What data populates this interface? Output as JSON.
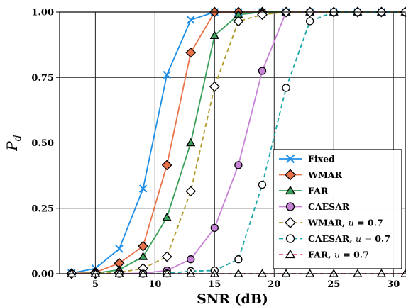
{
  "chart_data": {
    "type": "line",
    "xlabel": "SNR (dB)",
    "ylabel_main": "P",
    "ylabel_sub": "d",
    "xlim": [
      2,
      31
    ],
    "ylim": [
      0,
      1
    ],
    "x_ticks": [
      5,
      10,
      15,
      20,
      25,
      30
    ],
    "y_ticks": [
      0.0,
      0.25,
      0.5,
      0.75,
      1.0
    ],
    "x_tick_labels": [
      "5",
      "10",
      "15",
      "20",
      "25",
      "30"
    ],
    "y_tick_labels": [
      "0.00",
      "0.25",
      "0.50",
      "0.75",
      "1.00"
    ],
    "grid": true,
    "legend_position": "bottom-right",
    "x": [
      3,
      5,
      7,
      9,
      11,
      13,
      15,
      17,
      19,
      21,
      23,
      25,
      27,
      29,
      31
    ],
    "series": [
      {
        "name": "Fixed",
        "color": "#1f8fe6",
        "dash": "solid",
        "marker": "x",
        "values": [
          0.002,
          0.02,
          0.095,
          0.325,
          0.76,
          0.97,
          1.0,
          1.0,
          1.0,
          1.0,
          1.0,
          1.0,
          1.0,
          1.0,
          1.0
        ]
      },
      {
        "name": "WMAR",
        "color": "#e8734a",
        "dash": "solid",
        "marker": "diamond",
        "fill": "#e8734a",
        "values": [
          0.001,
          0.005,
          0.04,
          0.105,
          0.415,
          0.845,
          1.0,
          1.0,
          1.0,
          1.0,
          1.0,
          1.0,
          1.0,
          1.0,
          1.0
        ]
      },
      {
        "name": "FAR",
        "color": "#3aa05a",
        "dash": "solid",
        "marker": "triangle",
        "fill": "#3aa05a",
        "values": [
          0.0,
          0.002,
          0.015,
          0.065,
          0.215,
          0.5,
          0.91,
          0.99,
          1.0,
          1.0,
          1.0,
          1.0,
          1.0,
          1.0,
          1.0
        ]
      },
      {
        "name": "CAESAR",
        "color": "#c781d6",
        "dash": "solid",
        "marker": "circle",
        "fill": "#c781d6",
        "values": [
          0.0,
          0.0,
          0.0,
          0.002,
          0.012,
          0.055,
          0.175,
          0.415,
          0.775,
          1.0,
          1.0,
          1.0,
          1.0,
          1.0,
          1.0
        ]
      },
      {
        "name": "WMAR, u = 0.7",
        "name_main": "WMAR, ",
        "name_math": "u",
        "name_eq": " = 0.7",
        "color": "#b09a2a",
        "dash": "dashed",
        "marker": "diamond",
        "fill": "#ffffff",
        "values": [
          0.0,
          0.0,
          0.005,
          0.02,
          0.065,
          0.315,
          0.715,
          0.965,
          0.99,
          1.0,
          1.0,
          1.0,
          1.0,
          1.0,
          1.0
        ]
      },
      {
        "name": "CAESAR, u = 0.7",
        "name_main": "CAESAR, ",
        "name_math": "u",
        "name_eq": " = 0.7",
        "color": "#1aa8a8",
        "dash": "dashed",
        "marker": "circle",
        "fill": "#ffffff",
        "values": [
          0.0,
          0.0,
          0.0,
          0.0,
          0.001,
          0.01,
          0.012,
          0.055,
          0.34,
          0.71,
          0.965,
          1.0,
          1.0,
          1.0,
          1.0
        ]
      },
      {
        "name": "FAR, u = 0.7",
        "name_main": "FAR, ",
        "name_math": "u",
        "name_eq": " = 0.7",
        "color": "#e0567a",
        "dash": "dashed",
        "marker": "triangle",
        "fill": "#ffffff",
        "values": [
          0.0,
          0.0,
          0.0,
          0.0,
          0.0,
          0.0,
          0.0,
          0.0,
          0.0,
          0.0,
          0.0,
          0.0,
          0.0,
          0.0,
          0.0
        ]
      }
    ]
  }
}
